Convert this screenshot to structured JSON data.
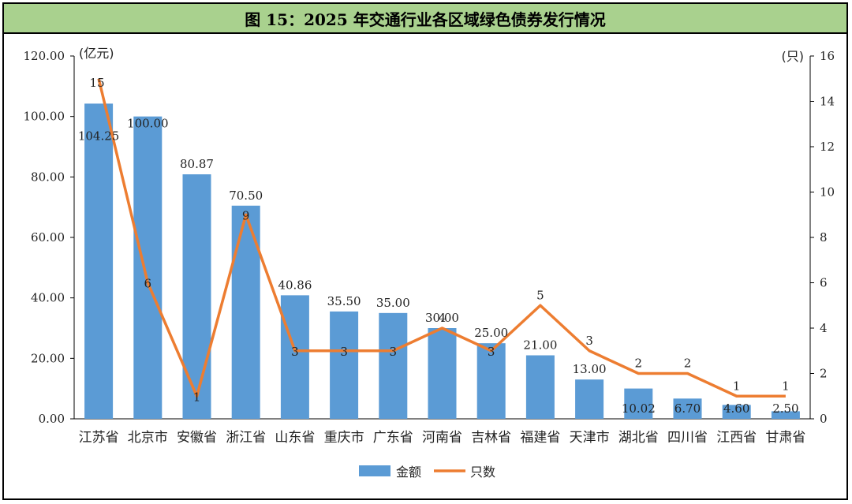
{
  "title": "图 15：2025 年交通行业各区域绿色债券发行情况",
  "chart_data": {
    "type": "bar",
    "categories": [
      "江苏省",
      "北京市",
      "安徽省",
      "浙江省",
      "山东省",
      "重庆市",
      "广东省",
      "河南省",
      "吉林省",
      "福建省",
      "天津市",
      "湖北省",
      "四川省",
      "江西省",
      "甘肃省"
    ],
    "series": [
      {
        "name": "金额",
        "type": "bar",
        "axis": "left",
        "color": "#5b9bd5",
        "values": [
          104.25,
          100.0,
          80.87,
          70.5,
          40.86,
          35.5,
          35.0,
          30.0,
          25.0,
          21.0,
          13.0,
          10.02,
          6.7,
          4.6,
          2.5
        ],
        "labels": [
          "104.25",
          "100.00",
          "80.87",
          "70.50",
          "40.86",
          "35.50",
          "35.00",
          "30.00",
          "25.00",
          "21.00",
          "13.00",
          "10.02",
          "6.70",
          "4.60",
          "2.50"
        ]
      },
      {
        "name": "只数",
        "type": "line",
        "axis": "right",
        "color": "#ed7d31",
        "values": [
          15,
          6,
          1,
          9,
          3,
          3,
          3,
          4,
          3,
          5,
          3,
          2,
          2,
          1,
          1
        ],
        "labels": [
          "15",
          "6",
          "1",
          "9",
          "3",
          "3",
          "3",
          "4",
          "3",
          "5",
          "3",
          "2",
          "2",
          "1",
          "1"
        ]
      }
    ],
    "y_left": {
      "unit": "(亿元)",
      "min": 0,
      "max": 120,
      "ticks": [
        "0.00",
        "20.00",
        "40.00",
        "60.00",
        "80.00",
        "100.00",
        "120.00"
      ]
    },
    "y_right": {
      "unit": "(只)",
      "min": 0,
      "max": 16,
      "ticks": [
        "0",
        "2",
        "4",
        "6",
        "8",
        "10",
        "12",
        "14",
        "16"
      ]
    },
    "legend": {
      "position": "bottom",
      "items": [
        "金额",
        "只数"
      ]
    },
    "grid": false
  }
}
